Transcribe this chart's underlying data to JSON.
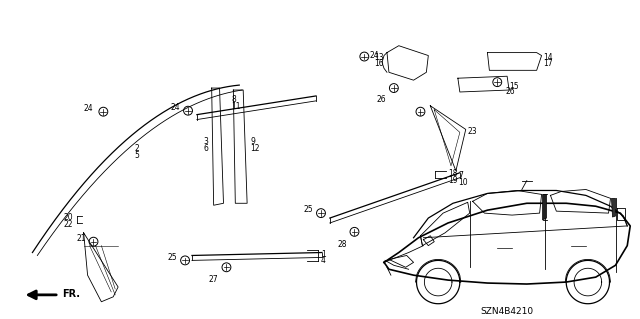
{
  "bg_color": "#ffffff",
  "diagram_code": "SZN4B4210",
  "figsize": [
    6.4,
    3.19
  ],
  "dpi": 100
}
